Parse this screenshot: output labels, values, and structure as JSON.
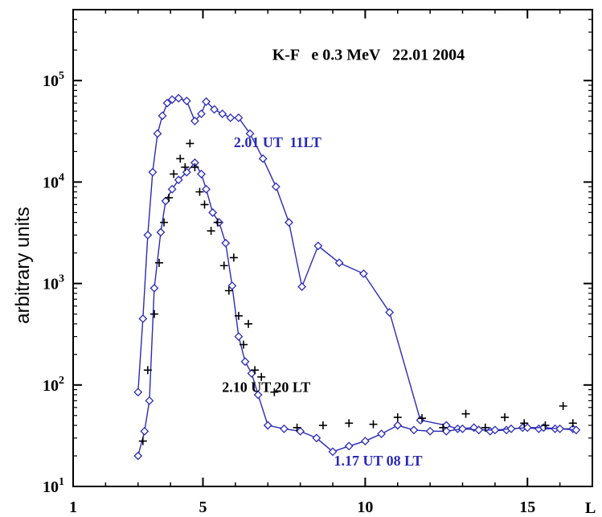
{
  "chart_data": {
    "type": "line",
    "title": "K-F   e 0.3 MeV   22.01 2004",
    "ylabel": "arbitrary units",
    "x_axis_end_label": "L",
    "xlim": [
      1,
      17
    ],
    "ylim": [
      10,
      500000
    ],
    "yscale": "log",
    "x_ticks": [
      {
        "value": 1,
        "label": "1"
      },
      {
        "value": 5,
        "label": "5"
      },
      {
        "value": 10,
        "label": "10"
      },
      {
        "value": 15,
        "label": "15"
      }
    ],
    "y_ticks": [
      {
        "value": 10,
        "base": "10",
        "exp": "1"
      },
      {
        "value": 100,
        "base": "10",
        "exp": "2"
      },
      {
        "value": 1000,
        "base": "10",
        "exp": "3"
      },
      {
        "value": 10000,
        "base": "10",
        "exp": "4"
      },
      {
        "value": 100000,
        "base": "10",
        "exp": "5"
      }
    ],
    "grid": false,
    "series": [
      {
        "name": "2.01 UT  11LT",
        "color": "#2a2ab8",
        "marker": "diamond",
        "x": [
          3.0,
          3.15,
          3.3,
          3.45,
          3.6,
          3.75,
          3.9,
          4.05,
          4.25,
          4.5,
          4.75,
          4.95,
          5.1,
          5.35,
          5.6,
          5.85,
          6.1,
          6.45,
          6.85,
          7.25,
          7.65,
          8.05,
          8.55,
          9.2,
          9.95,
          10.75,
          11.7,
          12.5,
          12.85,
          13.35,
          13.85,
          14.35,
          14.85,
          15.35,
          15.85,
          16.4
        ],
        "y": [
          85,
          450,
          3000,
          12500,
          30000,
          45000,
          60000,
          65000,
          67000,
          63000,
          40000,
          47000,
          62000,
          52000,
          47000,
          43000,
          43000,
          30000,
          17000,
          9000,
          4000,
          930,
          2350,
          1600,
          1250,
          520,
          45,
          40,
          37,
          38,
          35,
          36,
          38,
          37,
          37,
          37
        ]
      },
      {
        "name": "1.17 UT 08 LT",
        "color": "#2a2ab8",
        "marker": "diamond",
        "x": [
          3.0,
          3.2,
          3.35,
          3.5,
          3.7,
          3.85,
          4.05,
          4.25,
          4.5,
          4.75,
          4.95,
          5.1,
          5.3,
          5.5,
          5.7,
          5.9,
          6.1,
          6.3,
          6.5,
          6.7,
          7.0,
          7.5,
          8.0,
          8.5,
          9.0,
          9.5,
          10.0,
          10.5,
          11.0,
          11.5,
          12.0,
          12.5,
          13.0,
          13.5,
          14.0,
          14.5,
          15.0,
          15.5,
          16.0,
          16.5
        ],
        "y": [
          20,
          35,
          70,
          900,
          3200,
          6500,
          8500,
          10500,
          12500,
          15500,
          12000,
          8500,
          5000,
          4000,
          2500,
          950,
          300,
          170,
          130,
          80,
          40,
          37,
          35,
          30,
          22,
          25,
          28,
          33,
          40,
          36,
          35,
          35,
          37,
          36,
          36,
          37,
          38,
          38,
          37,
          36
        ]
      },
      {
        "name": "2.10 UT 20 LT",
        "color": "#000000",
        "marker": "plus",
        "x": [
          3.15,
          3.3,
          3.5,
          3.65,
          3.8,
          3.95,
          4.1,
          4.3,
          4.45,
          4.6,
          4.75,
          4.9,
          5.05,
          5.25,
          5.45,
          5.65,
          5.8,
          5.95,
          6.1,
          6.25,
          6.4,
          6.6,
          6.8,
          7.2,
          7.9,
          8.7,
          9.5,
          10.25,
          11.0,
          11.75,
          12.4,
          13.1,
          13.7,
          14.3,
          14.9,
          15.55,
          16.1,
          16.4
        ],
        "y": [
          28,
          140,
          500,
          1600,
          4000,
          7000,
          12000,
          17000,
          14000,
          24000,
          14000,
          8000,
          6000,
          3300,
          4000,
          1500,
          850,
          1800,
          480,
          250,
          400,
          140,
          120,
          85,
          38,
          40,
          42,
          41,
          48,
          47,
          38,
          52,
          38,
          48,
          42,
          40,
          62,
          42
        ]
      }
    ],
    "annotations": [
      {
        "text": "K-F   e 0.3 MeV   22.01 2004",
        "x": 10.1,
        "y": 160000,
        "color": "#000000",
        "size": 20
      },
      {
        "text": "2.01 UT  11LT",
        "x": 7.3,
        "y": 22000,
        "color": "#2a2ab8",
        "size": 18
      },
      {
        "text": "2.10 UT 20 LT",
        "x": 6.95,
        "y": 85,
        "color": "#000000",
        "size": 18
      },
      {
        "text": "1.17 UT 08 LT",
        "x": 10.4,
        "y": 16,
        "color": "#2a2ab8",
        "size": 18
      }
    ]
  }
}
